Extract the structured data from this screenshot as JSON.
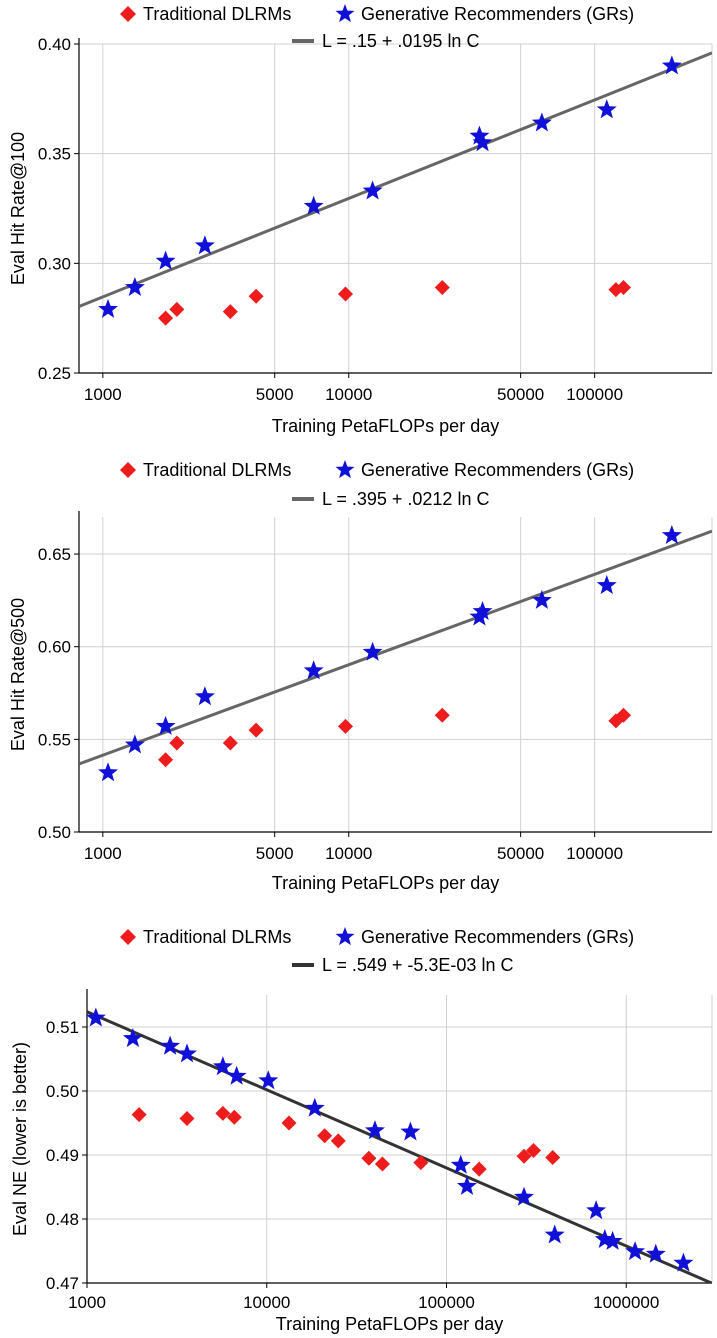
{
  "chart_data": [
    {
      "type": "scatter",
      "xscale": "log",
      "xlim": [
        800,
        300000
      ],
      "ylim": [
        0.25,
        0.4
      ],
      "xlabel": "Training PetaFLOPs per day",
      "ylabel": "Eval Hit Rate@100",
      "x_ticks": [
        1000,
        5000,
        10000,
        50000,
        100000
      ],
      "x_tick_labels": [
        "1000",
        "5000",
        "10000",
        "50000",
        "100000"
      ],
      "y_ticks": [
        0.25,
        0.3,
        0.35,
        0.4
      ],
      "y_tick_labels": [
        "0.25",
        "0.30",
        "0.35",
        "0.40"
      ],
      "grid": true,
      "legend": [
        {
          "label": "Traditional DLRMs",
          "marker": "diamond",
          "color": "#ee1c1c"
        },
        {
          "label": "Generative Recommenders (GRs)",
          "marker": "star",
          "color": "#1010d8"
        }
      ],
      "fit_label": "L = .15 + .0195 ln C",
      "fit": {
        "a": 0.15,
        "b": 0.0195,
        "color": "#666666"
      },
      "series": [
        {
          "name": "Traditional DLRMs",
          "marker": "diamond",
          "color": "#ee1c1c",
          "points": [
            [
              1800,
              0.275
            ],
            [
              2000,
              0.279
            ],
            [
              3300,
              0.278
            ],
            [
              4200,
              0.285
            ],
            [
              9700,
              0.286
            ],
            [
              24000,
              0.289
            ],
            [
              122000,
              0.288
            ],
            [
              131000,
              0.289
            ]
          ]
        },
        {
          "name": "Generative Recommenders (GRs)",
          "marker": "star",
          "color": "#1010d8",
          "points": [
            [
              1050,
              0.279
            ],
            [
              1350,
              0.289
            ],
            [
              1800,
              0.301
            ],
            [
              2600,
              0.308
            ],
            [
              7200,
              0.326
            ],
            [
              12500,
              0.333
            ],
            [
              34000,
              0.358
            ],
            [
              35000,
              0.355
            ],
            [
              61000,
              0.364
            ],
            [
              112000,
              0.37
            ],
            [
              206000,
              0.39
            ]
          ]
        }
      ]
    },
    {
      "type": "scatter",
      "xscale": "log",
      "xlim": [
        800,
        300000
      ],
      "ylim": [
        0.5,
        0.67
      ],
      "xlabel": "Training PetaFLOPs per day",
      "ylabel": "Eval Hit Rate@500",
      "x_ticks": [
        1000,
        5000,
        10000,
        50000,
        100000
      ],
      "x_tick_labels": [
        "1000",
        "5000",
        "10000",
        "50000",
        "100000"
      ],
      "y_ticks": [
        0.5,
        0.55,
        0.6,
        0.65
      ],
      "y_tick_labels": [
        "0.50",
        "0.55",
        "0.60",
        "0.65"
      ],
      "grid": true,
      "legend": [
        {
          "label": "Traditional DLRMs",
          "marker": "diamond",
          "color": "#ee1c1c"
        },
        {
          "label": "Generative Recommenders (GRs)",
          "marker": "star",
          "color": "#1010d8"
        }
      ],
      "fit_label": "L = .395 + .0212 ln C",
      "fit": {
        "a": 0.395,
        "b": 0.0212,
        "color": "#666666"
      },
      "series": [
        {
          "name": "Traditional DLRMs",
          "marker": "diamond",
          "color": "#ee1c1c",
          "points": [
            [
              1800,
              0.539
            ],
            [
              2000,
              0.548
            ],
            [
              3300,
              0.548
            ],
            [
              4200,
              0.555
            ],
            [
              9700,
              0.557
            ],
            [
              24000,
              0.563
            ],
            [
              122000,
              0.56
            ],
            [
              131000,
              0.563
            ]
          ]
        },
        {
          "name": "Generative Recommenders (GRs)",
          "marker": "star",
          "color": "#1010d8",
          "points": [
            [
              1050,
              0.532
            ],
            [
              1350,
              0.547
            ],
            [
              1800,
              0.557
            ],
            [
              2600,
              0.573
            ],
            [
              7200,
              0.587
            ],
            [
              12500,
              0.597
            ],
            [
              34000,
              0.616
            ],
            [
              35000,
              0.619
            ],
            [
              61000,
              0.625
            ],
            [
              112000,
              0.633
            ],
            [
              206000,
              0.66
            ]
          ]
        }
      ]
    },
    {
      "type": "scatter",
      "xscale": "log",
      "xlim": [
        1000,
        3000000
      ],
      "ylim": [
        0.47,
        0.515
      ],
      "xlabel": "Training PetaFLOPs per day",
      "ylabel": "Eval NE (lower is better)",
      "x_ticks": [
        1000,
        10000,
        100000,
        1000000
      ],
      "x_tick_labels": [
        "1000",
        "10000",
        "100000",
        "1000000"
      ],
      "y_ticks": [
        0.47,
        0.48,
        0.49,
        0.5,
        0.51
      ],
      "y_tick_labels": [
        "0.47",
        "0.48",
        "0.49",
        "0.50",
        "0.51"
      ],
      "grid": true,
      "legend": [
        {
          "label": "Traditional DLRMs",
          "marker": "diamond",
          "color": "#ee1c1c"
        },
        {
          "label": "Generative Recommenders (GRs)",
          "marker": "star",
          "color": "#1010d8"
        }
      ],
      "fit_label": "L = .549 + -5.3E-03 ln C",
      "fit": {
        "a": 0.549,
        "b": -0.0053,
        "color": "#333333"
      },
      "series": [
        {
          "name": "Traditional DLRMs",
          "marker": "diamond",
          "color": "#ee1c1c",
          "points": [
            [
              1950,
              0.4963
            ],
            [
              3600,
              0.4957
            ],
            [
              5700,
              0.4965
            ],
            [
              6600,
              0.4959
            ],
            [
              13300,
              0.495
            ],
            [
              21000,
              0.493
            ],
            [
              25000,
              0.4922
            ],
            [
              37000,
              0.4895
            ],
            [
              44000,
              0.4886
            ],
            [
              72000,
              0.4888
            ],
            [
              152000,
              0.4878
            ],
            [
              270000,
              0.4898
            ],
            [
              305000,
              0.4907
            ],
            [
              390000,
              0.4896
            ]
          ]
        },
        {
          "name": "Generative Recommenders (GRs)",
          "marker": "star",
          "color": "#1010d8",
          "points": [
            [
              1120,
              0.5114
            ],
            [
              1800,
              0.5082
            ],
            [
              2900,
              0.507
            ],
            [
              3600,
              0.5058
            ],
            [
              5700,
              0.5038
            ],
            [
              6800,
              0.5023
            ],
            [
              10200,
              0.5016
            ],
            [
              18500,
              0.4973
            ],
            [
              40000,
              0.4938
            ],
            [
              63000,
              0.4936
            ],
            [
              120000,
              0.4884
            ],
            [
              130000,
              0.4851
            ],
            [
              270000,
              0.4834
            ],
            [
              400000,
              0.4775
            ],
            [
              680000,
              0.4813
            ],
            [
              760000,
              0.4768
            ],
            [
              840000,
              0.4765
            ],
            [
              1120000,
              0.4749
            ],
            [
              1460000,
              0.4745
            ],
            [
              2080000,
              0.4731
            ]
          ]
        }
      ]
    }
  ]
}
